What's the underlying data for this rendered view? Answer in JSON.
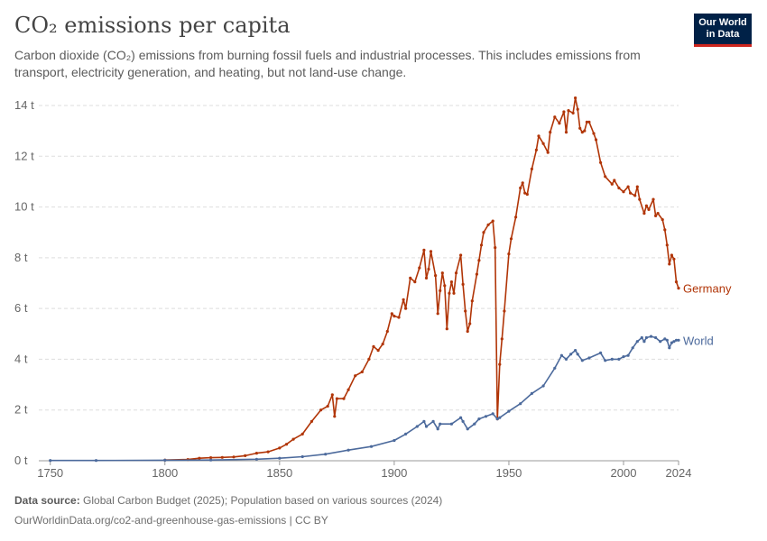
{
  "header": {
    "title": "CO₂ emissions per capita",
    "subtitle": "Carbon dioxide (CO₂) emissions from burning fossil fuels and industrial processes. This includes emissions from transport, electricity generation, and heating, but not land-use change.",
    "logo_line1": "Our World",
    "logo_line2": "in Data"
  },
  "footer": {
    "source_label": "Data source:",
    "source_text": "Global Carbon Budget (2025); Population based on various sources (2024)",
    "url_text": "OurWorldinData.org/co2-and-greenhouse-gas-emissions | CC BY"
  },
  "colors": {
    "germany": "#b13507",
    "world": "#4c6a9c",
    "grid": "#dddddd",
    "axis": "#666666"
  },
  "chart_data": {
    "type": "line",
    "title": "CO₂ emissions per capita",
    "xlim": [
      1745,
      2024
    ],
    "ylim": [
      0,
      14
    ],
    "x_ticks": [
      1750,
      1800,
      1850,
      1900,
      1950,
      2000,
      2024
    ],
    "y_ticks": [
      {
        "value": 0,
        "label": "0 t"
      },
      {
        "value": 2,
        "label": "2 t"
      },
      {
        "value": 4,
        "label": "4 t"
      },
      {
        "value": 6,
        "label": "6 t"
      },
      {
        "value": 8,
        "label": "8 t"
      },
      {
        "value": 10,
        "label": "10 t"
      },
      {
        "value": 12,
        "label": "12 t"
      },
      {
        "value": 14,
        "label": "14 t"
      }
    ],
    "grid": "horizontal dashed",
    "series": [
      {
        "name": "Germany",
        "color": "#b13507",
        "points": [
          [
            1800,
            0.03
          ],
          [
            1810,
            0.05
          ],
          [
            1815,
            0.1
          ],
          [
            1820,
            0.12
          ],
          [
            1825,
            0.13
          ],
          [
            1830,
            0.15
          ],
          [
            1835,
            0.2
          ],
          [
            1840,
            0.3
          ],
          [
            1845,
            0.35
          ],
          [
            1850,
            0.5
          ],
          [
            1853,
            0.65
          ],
          [
            1856,
            0.85
          ],
          [
            1860,
            1.05
          ],
          [
            1864,
            1.55
          ],
          [
            1868,
            2.0
          ],
          [
            1871,
            2.15
          ],
          [
            1873,
            2.6
          ],
          [
            1874,
            1.75
          ],
          [
            1875,
            2.45
          ],
          [
            1878,
            2.45
          ],
          [
            1880,
            2.8
          ],
          [
            1883,
            3.35
          ],
          [
            1886,
            3.5
          ],
          [
            1889,
            4.0
          ],
          [
            1891,
            4.5
          ],
          [
            1893,
            4.35
          ],
          [
            1895,
            4.6
          ],
          [
            1897,
            5.1
          ],
          [
            1899,
            5.8
          ],
          [
            1900,
            5.7
          ],
          [
            1902,
            5.65
          ],
          [
            1904,
            6.35
          ],
          [
            1905,
            6.0
          ],
          [
            1907,
            7.2
          ],
          [
            1909,
            7.05
          ],
          [
            1911,
            7.6
          ],
          [
            1913,
            8.3
          ],
          [
            1914,
            7.2
          ],
          [
            1915,
            7.55
          ],
          [
            1916,
            8.25
          ],
          [
            1918,
            7.3
          ],
          [
            1919,
            5.8
          ],
          [
            1920,
            6.7
          ],
          [
            1921,
            7.4
          ],
          [
            1922,
            6.9
          ],
          [
            1923,
            5.2
          ],
          [
            1924,
            6.6
          ],
          [
            1925,
            7.05
          ],
          [
            1926,
            6.6
          ],
          [
            1927,
            7.4
          ],
          [
            1929,
            8.1
          ],
          [
            1930,
            6.95
          ],
          [
            1931,
            5.9
          ],
          [
            1932,
            5.1
          ],
          [
            1933,
            5.4
          ],
          [
            1934,
            6.3
          ],
          [
            1936,
            7.35
          ],
          [
            1937,
            7.9
          ],
          [
            1938,
            8.5
          ],
          [
            1939,
            9.0
          ],
          [
            1941,
            9.3
          ],
          [
            1943,
            9.45
          ],
          [
            1944,
            8.4
          ],
          [
            1945,
            1.65
          ],
          [
            1946,
            3.8
          ],
          [
            1947,
            4.8
          ],
          [
            1948,
            5.9
          ],
          [
            1950,
            8.15
          ],
          [
            1951,
            8.75
          ],
          [
            1953,
            9.6
          ],
          [
            1955,
            10.75
          ],
          [
            1956,
            10.95
          ],
          [
            1957,
            10.55
          ],
          [
            1958,
            10.5
          ],
          [
            1960,
            11.5
          ],
          [
            1962,
            12.25
          ],
          [
            1963,
            12.8
          ],
          [
            1965,
            12.5
          ],
          [
            1967,
            12.15
          ],
          [
            1968,
            12.95
          ],
          [
            1970,
            13.55
          ],
          [
            1972,
            13.3
          ],
          [
            1974,
            13.75
          ],
          [
            1975,
            12.95
          ],
          [
            1976,
            13.8
          ],
          [
            1978,
            13.7
          ],
          [
            1979,
            14.3
          ],
          [
            1980,
            13.85
          ],
          [
            1981,
            13.1
          ],
          [
            1982,
            12.95
          ],
          [
            1983,
            13.0
          ],
          [
            1984,
            13.35
          ],
          [
            1985,
            13.35
          ],
          [
            1987,
            12.9
          ],
          [
            1988,
            12.65
          ],
          [
            1990,
            11.75
          ],
          [
            1992,
            11.2
          ],
          [
            1995,
            10.9
          ],
          [
            1996,
            11.05
          ],
          [
            1998,
            10.75
          ],
          [
            2000,
            10.6
          ],
          [
            2002,
            10.8
          ],
          [
            2003,
            10.55
          ],
          [
            2005,
            10.45
          ],
          [
            2006,
            10.8
          ],
          [
            2007,
            10.3
          ],
          [
            2009,
            9.75
          ],
          [
            2010,
            10.05
          ],
          [
            2011,
            9.9
          ],
          [
            2013,
            10.3
          ],
          [
            2014,
            9.65
          ],
          [
            2015,
            9.75
          ],
          [
            2017,
            9.5
          ],
          [
            2018,
            9.1
          ],
          [
            2019,
            8.5
          ],
          [
            2020,
            7.75
          ],
          [
            2021,
            8.1
          ],
          [
            2022,
            7.95
          ],
          [
            2023,
            7.05
          ],
          [
            2024,
            6.8
          ]
        ]
      },
      {
        "name": "World",
        "color": "#4c6a9c",
        "points": [
          [
            1750,
            0.01
          ],
          [
            1770,
            0.01
          ],
          [
            1800,
            0.02
          ],
          [
            1820,
            0.03
          ],
          [
            1840,
            0.06
          ],
          [
            1850,
            0.1
          ],
          [
            1860,
            0.16
          ],
          [
            1870,
            0.26
          ],
          [
            1880,
            0.42
          ],
          [
            1890,
            0.56
          ],
          [
            1900,
            0.8
          ],
          [
            1905,
            1.05
          ],
          [
            1910,
            1.35
          ],
          [
            1913,
            1.55
          ],
          [
            1914,
            1.35
          ],
          [
            1917,
            1.55
          ],
          [
            1919,
            1.25
          ],
          [
            1920,
            1.45
          ],
          [
            1925,
            1.45
          ],
          [
            1929,
            1.7
          ],
          [
            1930,
            1.55
          ],
          [
            1932,
            1.25
          ],
          [
            1935,
            1.45
          ],
          [
            1937,
            1.65
          ],
          [
            1940,
            1.75
          ],
          [
            1943,
            1.85
          ],
          [
            1945,
            1.65
          ],
          [
            1946,
            1.7
          ],
          [
            1950,
            1.95
          ],
          [
            1955,
            2.25
          ],
          [
            1960,
            2.65
          ],
          [
            1965,
            2.95
          ],
          [
            1970,
            3.65
          ],
          [
            1973,
            4.15
          ],
          [
            1975,
            4.0
          ],
          [
            1977,
            4.2
          ],
          [
            1979,
            4.35
          ],
          [
            1980,
            4.2
          ],
          [
            1982,
            3.95
          ],
          [
            1985,
            4.05
          ],
          [
            1990,
            4.25
          ],
          [
            1992,
            3.95
          ],
          [
            1995,
            4.0
          ],
          [
            1998,
            4.0
          ],
          [
            2000,
            4.1
          ],
          [
            2002,
            4.15
          ],
          [
            2004,
            4.45
          ],
          [
            2006,
            4.7
          ],
          [
            2008,
            4.85
          ],
          [
            2009,
            4.7
          ],
          [
            2010,
            4.85
          ],
          [
            2012,
            4.9
          ],
          [
            2014,
            4.85
          ],
          [
            2016,
            4.7
          ],
          [
            2018,
            4.8
          ],
          [
            2019,
            4.75
          ],
          [
            2020,
            4.45
          ],
          [
            2021,
            4.65
          ],
          [
            2022,
            4.7
          ],
          [
            2023,
            4.75
          ],
          [
            2024,
            4.75
          ]
        ]
      }
    ]
  }
}
